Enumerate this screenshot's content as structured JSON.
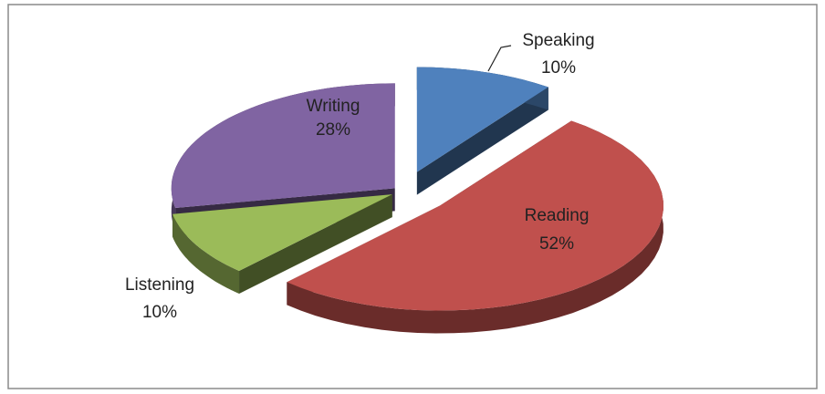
{
  "chart_data": {
    "type": "pie",
    "categories": [
      "Speaking",
      "Reading",
      "Listening",
      "Writing"
    ],
    "values": [
      10,
      52,
      10,
      28
    ],
    "value_labels": [
      "10%",
      "52%",
      "10%",
      "28%"
    ],
    "colors": [
      "#4f81bd",
      "#c0504d",
      "#9bbb59",
      "#8064a2"
    ]
  }
}
